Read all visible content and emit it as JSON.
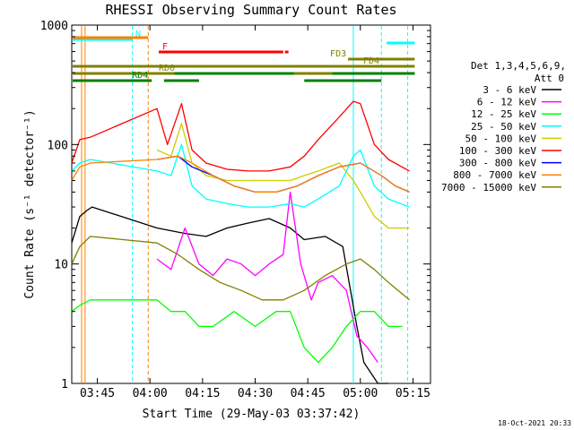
{
  "chart_data": {
    "type": "line",
    "title": "RHESSI Observing Summary Count Rates",
    "xlabel": "Start Time (29-May-03 03:37:42)",
    "ylabel": "Count Rate (s⁻¹ detector⁻¹)",
    "y_scale": "log",
    "ylim": [
      1,
      1000
    ],
    "xlim": [
      "03:37:42",
      "05:20:00"
    ],
    "x_ticks": [
      "03:45",
      "04:00",
      "04:15",
      "04:30",
      "04:45",
      "05:00",
      "05:15"
    ],
    "y_ticks": [
      "1",
      "10",
      "100",
      "1000"
    ],
    "legend_header": [
      "Det 1,3,4,5,6,9,",
      "Att 0"
    ],
    "footer": "18-Oct-2021 20:33",
    "series": [
      {
        "name": "3 - 6 keV",
        "color": "#000000",
        "x": [
          "03:37:42",
          "03:40:00",
          "03:42:00",
          "03:43:30",
          "04:02:00",
          "04:10:00",
          "04:16:00",
          "04:22:00",
          "04:28:00",
          "04:34:00",
          "04:40:00",
          "04:44:00",
          "04:50:00",
          "04:55:00",
          "04:59:00",
          "05:01:00",
          "05:05:00",
          "05:08:00"
        ],
        "y": [
          15,
          25,
          28,
          30,
          20,
          18,
          17,
          20,
          22,
          24,
          20,
          16,
          17,
          14,
          3,
          1.5,
          1,
          1
        ]
      },
      {
        "name": "6 - 12 keV",
        "color": "#ff00ff",
        "x": [
          "04:02:00",
          "04:06:00",
          "04:10:00",
          "04:14:00",
          "04:18:00",
          "04:22:00",
          "04:26:00",
          "04:30:00",
          "04:34:00",
          "04:38:00",
          "04:40:00",
          "04:43:00",
          "04:46:00",
          "04:48:00",
          "04:52:00",
          "04:56:00",
          "04:59:00",
          "05:02:00",
          "05:05:00"
        ],
        "y": [
          11,
          9,
          20,
          10,
          8,
          11,
          10,
          8,
          10,
          12,
          40,
          10,
          5,
          7,
          8,
          6,
          2.5,
          2,
          1.5
        ]
      },
      {
        "name": "12 - 25 keV",
        "color": "#00ff00",
        "x": [
          "03:37:42",
          "03:40:00",
          "03:43:00",
          "04:02:00",
          "04:06:00",
          "04:10:00",
          "04:14:00",
          "04:18:00",
          "04:24:00",
          "04:30:00",
          "04:36:00",
          "04:40:00",
          "04:44:00",
          "04:48:00",
          "04:52:00",
          "04:56:00",
          "05:00:00",
          "05:04:00",
          "05:08:00",
          "05:12:00"
        ],
        "y": [
          4,
          4.5,
          5,
          5,
          4,
          4,
          3,
          3,
          4,
          3,
          4,
          4,
          2,
          1.5,
          2,
          3,
          4,
          4,
          3,
          3
        ]
      },
      {
        "name": "25 - 50 keV",
        "color": "#00ffff",
        "x": [
          "03:37:42",
          "03:40:00",
          "03:43:00",
          "04:02:00",
          "04:06:00",
          "04:09:00",
          "04:12:00",
          "04:16:00",
          "04:22:00",
          "04:28:00",
          "04:34:00",
          "04:40:00",
          "04:44:00",
          "04:48:00",
          "04:54:00",
          "04:58:00",
          "05:00:00",
          "05:04:00",
          "05:08:00",
          "05:14:00"
        ],
        "y": [
          60,
          70,
          75,
          60,
          55,
          100,
          45,
          35,
          32,
          30,
          30,
          32,
          30,
          35,
          45,
          80,
          90,
          45,
          35,
          30
        ]
      },
      {
        "name": "50 - 100 keV",
        "color": "#cccc00",
        "x": [
          "04:02:00",
          "04:06:00",
          "04:09:00",
          "04:12:00",
          "04:16:00",
          "04:22:00",
          "04:28:00",
          "04:34:00",
          "04:40:00",
          "04:44:00",
          "04:48:00",
          "04:54:00",
          "04:58:00",
          "05:00:00",
          "05:04:00",
          "05:08:00",
          "05:14:00"
        ],
        "y": [
          90,
          80,
          150,
          70,
          55,
          50,
          50,
          50,
          50,
          55,
          60,
          70,
          50,
          40,
          25,
          20,
          20
        ]
      },
      {
        "name": "100 - 300 keV",
        "color": "#ff0000",
        "x": [
          "03:37:42",
          "03:40:00",
          "03:43:00",
          "04:02:00",
          "04:05:00",
          "04:09:00",
          "04:12:00",
          "04:16:00",
          "04:22:00",
          "04:28:00",
          "04:34:00",
          "04:40:00",
          "04:44:00",
          "04:48:00",
          "04:54:00",
          "04:58:00",
          "05:00:00",
          "05:04:00",
          "05:08:00",
          "05:14:00"
        ],
        "y": [
          70,
          110,
          115,
          200,
          100,
          220,
          90,
          70,
          62,
          60,
          60,
          65,
          80,
          110,
          170,
          230,
          220,
          100,
          75,
          60
        ]
      },
      {
        "name": "300 - 800 keV",
        "color": "#0000ff",
        "x": [
          "04:02:00",
          "04:08:00",
          "04:12:00",
          "04:18:00",
          "04:24:00",
          "04:30:00",
          "04:36:00",
          "04:42:00",
          "04:48:00",
          "04:54:00",
          "05:00:00",
          "05:06:00",
          "05:10:00",
          "05:14:00"
        ],
        "y": [
          75,
          80,
          65,
          55,
          45,
          40,
          40,
          45,
          55,
          65,
          70,
          55,
          45,
          40
        ]
      },
      {
        "name": "800 - 7000 keV",
        "color": "#ff8000",
        "x": [
          "03:37:42",
          "03:40:00",
          "03:43:00",
          "04:02:00",
          "04:08:00",
          "04:12:00",
          "04:18:00",
          "04:24:00",
          "04:30:00",
          "04:36:00",
          "04:42:00",
          "04:48:00",
          "04:54:00",
          "05:00:00",
          "05:06:00",
          "05:10:00",
          "05:14:00"
        ],
        "y": [
          50,
          65,
          70,
          75,
          80,
          70,
          55,
          45,
          40,
          40,
          45,
          55,
          65,
          70,
          55,
          45,
          40
        ]
      },
      {
        "name": "7000 - 15000 keV",
        "color": "#808000",
        "x": [
          "03:37:42",
          "03:40:00",
          "03:43:00",
          "04:02:00",
          "04:08:00",
          "04:14:00",
          "04:20:00",
          "04:26:00",
          "04:32:00",
          "04:38:00",
          "04:44:00",
          "04:50:00",
          "04:56:00",
          "05:00:00",
          "05:04:00",
          "05:08:00",
          "05:14:00"
        ],
        "y": [
          10,
          14,
          17,
          15,
          12,
          9,
          7,
          6,
          5,
          5,
          6,
          8,
          10,
          11,
          9,
          7,
          5
        ]
      }
    ],
    "state_bars": [
      {
        "label": "N",
        "color": "#00ffff",
        "start": "03:37:42",
        "end": "03:55:00"
      },
      {
        "label": "",
        "color": "#00ffff",
        "start": "05:07:30",
        "end": "05:15:30"
      },
      {
        "label": "",
        "color": "#ff8000",
        "start": "03:37:42",
        "end": "03:59:30"
      },
      {
        "label": "F",
        "color": "#ff0000",
        "start": "04:02:30",
        "end": "04:38:00"
      },
      {
        "label": "",
        "color": "#ff0000",
        "start": "04:38:30",
        "end": "04:39:30"
      },
      {
        "label": "FD3",
        "color": "#808000",
        "start": "04:56:30",
        "end": "05:15:30"
      },
      {
        "label": "FD4",
        "color": "#808000",
        "start": "03:37:42",
        "end": "05:15:30"
      },
      {
        "label": "RD0",
        "color": "#808000",
        "start": "03:37:42",
        "end": "05:15:30"
      },
      {
        "label": "",
        "color": "#008000",
        "start": "04:07:00",
        "end": "04:41:00"
      },
      {
        "label": "",
        "color": "#008000",
        "start": "04:52:00",
        "end": "05:15:30"
      },
      {
        "label": "RD4",
        "color": "#008000",
        "start": "03:37:42",
        "end": "04:00:30"
      },
      {
        "label": "",
        "color": "#008000",
        "start": "04:04:00",
        "end": "04:14:00"
      },
      {
        "label": "",
        "color": "#008000",
        "start": "04:44:00",
        "end": "05:06:00"
      }
    ],
    "vertical_lines": [
      {
        "t": "03:40:30",
        "color": "#ff8000",
        "style": "solid"
      },
      {
        "t": "03:41:30",
        "color": "#ff8000",
        "style": "solid"
      },
      {
        "t": "03:55:00",
        "color": "#00ffff",
        "style": "dashed"
      },
      {
        "t": "03:59:30",
        "color": "#ff8000",
        "style": "dashed"
      },
      {
        "t": "04:58:00",
        "color": "#00ffff",
        "style": "solid"
      },
      {
        "t": "05:06:00",
        "color": "#00ffff",
        "style": "dashed"
      },
      {
        "t": "05:13:30",
        "color": "#00ffff",
        "style": "dashed"
      }
    ]
  }
}
